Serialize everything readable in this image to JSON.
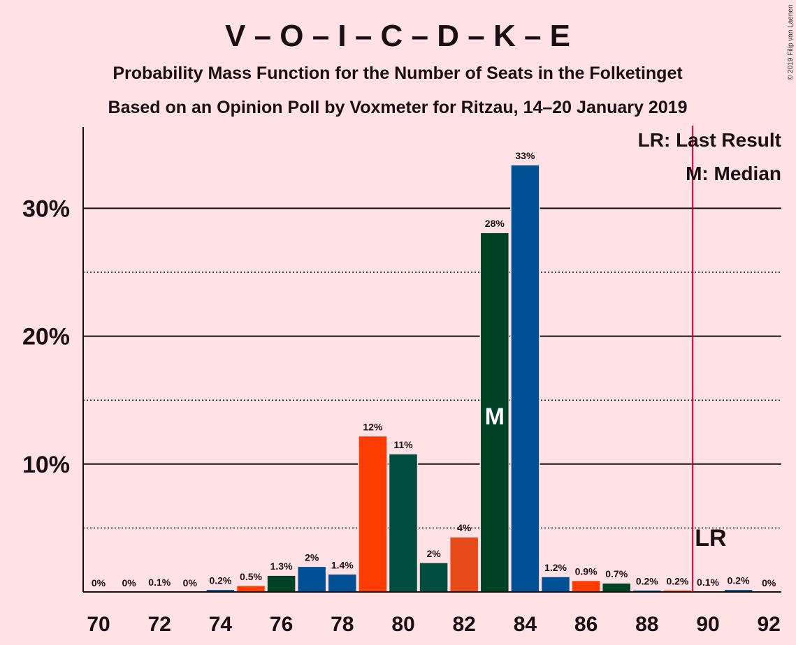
{
  "chart_data": {
    "type": "bar",
    "title": "V – O – I – C – D – K – E",
    "subtitle": "Probability Mass Function for the Number of Seats in the Folketinget",
    "subtitle2": "Based on an Opinion Poll by Voxmeter for Ritzau, 14–20 January 2019",
    "copyright": "© 2019 Filip van Laenen",
    "x": [
      70,
      71,
      72,
      73,
      74,
      75,
      76,
      77,
      78,
      79,
      80,
      81,
      82,
      83,
      84,
      85,
      86,
      87,
      88,
      89,
      90,
      91,
      92
    ],
    "values": [
      0,
      0,
      0.1,
      0,
      0.2,
      0.5,
      1.3,
      2,
      1.4,
      12,
      11,
      2,
      4,
      28,
      33,
      1.2,
      0.9,
      0.7,
      0.2,
      0.2,
      0.1,
      0.2,
      0
    ],
    "bar_heights_pct": [
      0,
      0,
      0.06,
      0,
      0.2,
      0.5,
      1.3,
      2.0,
      1.4,
      12.2,
      10.8,
      2.3,
      4.3,
      28.1,
      33.4,
      1.2,
      0.9,
      0.7,
      0.15,
      0.15,
      0.06,
      0.2,
      0
    ],
    "data_labels": [
      "0%",
      "0%",
      "0.1%",
      "0%",
      "0.2%",
      "0.5%",
      "1.3%",
      "2%",
      "1.4%",
      "12%",
      "11%",
      "2%",
      "4%",
      "28%",
      "33%",
      "1.2%",
      "0.9%",
      "0.7%",
      "0.2%",
      "0.2%",
      "0.1%",
      "0.2%",
      "0%"
    ],
    "bar_colors": [
      "#005096",
      "#005096",
      "#005096",
      "#005096",
      "#005096",
      "#FF3C00",
      "#004225",
      "#005096",
      "#005096",
      "#FF3C00",
      "#004D40",
      "#004D40",
      "#E84B1A",
      "#004225",
      "#005096",
      "#005096",
      "#FF3C00",
      "#004225",
      "#005096",
      "#FF3C00",
      "#004D40",
      "#005096",
      "#005096"
    ],
    "x_ticks": [
      "70",
      "72",
      "74",
      "76",
      "78",
      "80",
      "82",
      "84",
      "86",
      "88",
      "90",
      "92"
    ],
    "y_ticks": [
      "10%",
      "20%",
      "30%"
    ],
    "ylim": [
      0,
      36.5
    ],
    "solid_gridlines_pct": [
      10,
      20,
      30
    ],
    "dotted_gridlines_pct": [
      5,
      15,
      25
    ],
    "median_seat": 83,
    "median_marker": "M",
    "last_result_seat": 89.5,
    "last_result_marker": "LR",
    "legend": [
      "LR: Last Result",
      "M: Median"
    ],
    "colors": {
      "background": "#FFE1E6",
      "last_result_line": "#C0003C",
      "text": "#1a0f12"
    }
  }
}
